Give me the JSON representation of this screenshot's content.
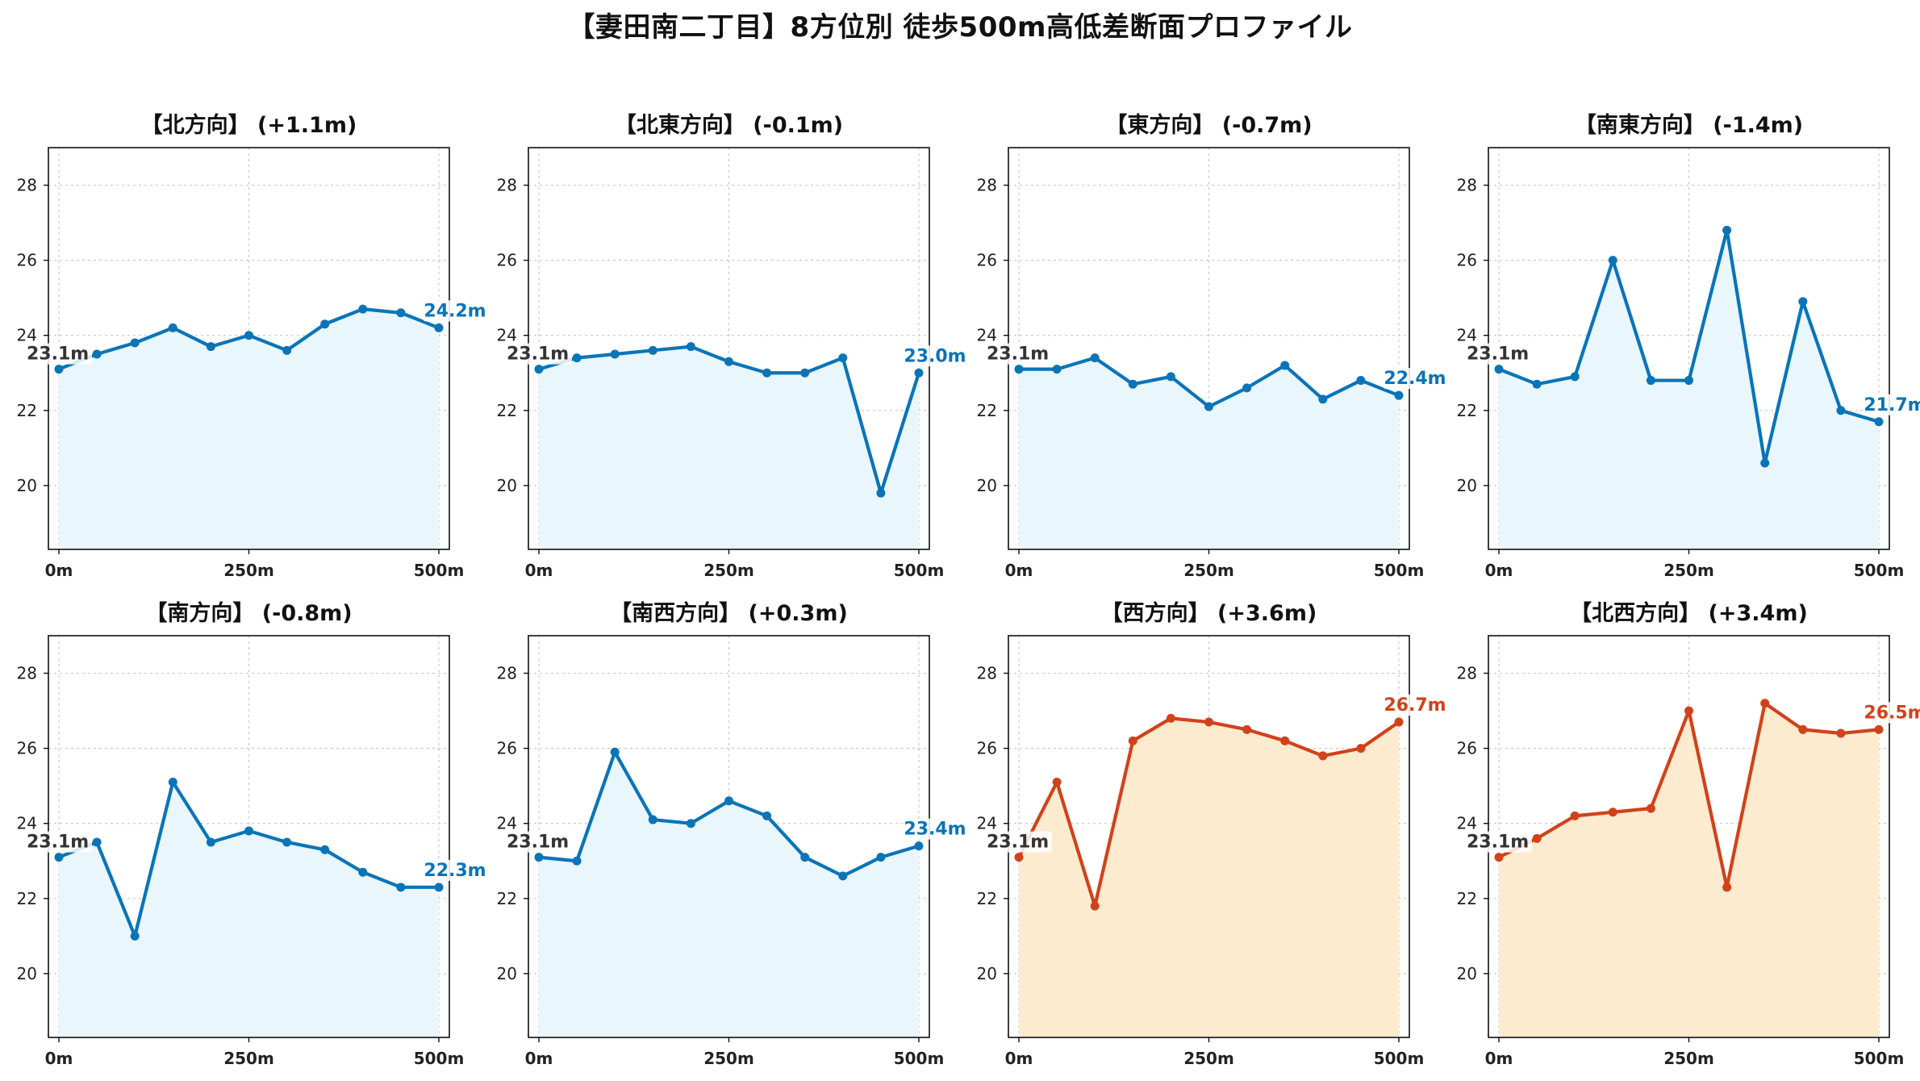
{
  "title": "【妻田南二丁目】8方位別 徒歩500m高低差断面プロファイル",
  "colors": {
    "up_line": "#d1421a",
    "up_fill": "#fdebd0",
    "down_line": "#0a74b8",
    "down_fill": "#e9f6fc",
    "start_label": "#333333"
  },
  "chart_data": [
    {
      "type": "area",
      "title": "【北方向】 (+1.1m)",
      "trend": "down",
      "x": [
        0,
        50,
        100,
        150,
        200,
        250,
        300,
        350,
        400,
        450,
        500
      ],
      "values": [
        23.1,
        23.5,
        23.8,
        24.2,
        23.7,
        24.0,
        23.6,
        24.3,
        24.7,
        24.6,
        24.2
      ],
      "start_label": "23.1m",
      "end_label": "24.2m",
      "x_ticks": [
        "0m",
        "250m",
        "500m"
      ],
      "y_ticks": [
        "20",
        "22",
        "24",
        "26",
        "28"
      ],
      "ylim": [
        18.3,
        29.0
      ],
      "grid": true
    },
    {
      "type": "area",
      "title": "【北東方向】 (-0.1m)",
      "trend": "down",
      "x": [
        0,
        50,
        100,
        150,
        200,
        250,
        300,
        350,
        400,
        450,
        500
      ],
      "values": [
        23.1,
        23.4,
        23.5,
        23.6,
        23.7,
        23.3,
        23.0,
        23.0,
        23.4,
        19.8,
        23.0
      ],
      "start_label": "23.1m",
      "end_label": "23.0m",
      "x_ticks": [
        "0m",
        "250m",
        "500m"
      ],
      "y_ticks": [
        "20",
        "22",
        "24",
        "26",
        "28"
      ],
      "ylim": [
        18.3,
        29.0
      ],
      "grid": true
    },
    {
      "type": "area",
      "title": "【東方向】 (-0.7m)",
      "trend": "down",
      "x": [
        0,
        50,
        100,
        150,
        200,
        250,
        300,
        350,
        400,
        450,
        500
      ],
      "values": [
        23.1,
        23.1,
        23.4,
        22.7,
        22.9,
        22.1,
        22.6,
        23.2,
        22.3,
        22.8,
        22.4
      ],
      "start_label": "23.1m",
      "end_label": "22.4m",
      "x_ticks": [
        "0m",
        "250m",
        "500m"
      ],
      "y_ticks": [
        "20",
        "22",
        "24",
        "26",
        "28"
      ],
      "ylim": [
        18.3,
        29.0
      ],
      "grid": true
    },
    {
      "type": "area",
      "title": "【南東方向】 (-1.4m)",
      "trend": "down",
      "x": [
        0,
        50,
        100,
        150,
        200,
        250,
        300,
        350,
        400,
        450,
        500
      ],
      "values": [
        23.1,
        22.7,
        22.9,
        26.0,
        22.8,
        22.8,
        26.8,
        20.6,
        24.9,
        22.0,
        21.7
      ],
      "start_label": "23.1m",
      "end_label": "21.7m",
      "x_ticks": [
        "0m",
        "250m",
        "500m"
      ],
      "y_ticks": [
        "20",
        "22",
        "24",
        "26",
        "28"
      ],
      "ylim": [
        18.3,
        29.0
      ],
      "grid": true
    },
    {
      "type": "area",
      "title": "【南方向】 (-0.8m)",
      "trend": "down",
      "x": [
        0,
        50,
        100,
        150,
        200,
        250,
        300,
        350,
        400,
        450,
        500
      ],
      "values": [
        23.1,
        23.5,
        21.0,
        25.1,
        23.5,
        23.8,
        23.5,
        23.3,
        22.7,
        22.3,
        22.3
      ],
      "start_label": "23.1m",
      "end_label": "22.3m",
      "x_ticks": [
        "0m",
        "250m",
        "500m"
      ],
      "y_ticks": [
        "20",
        "22",
        "24",
        "26",
        "28"
      ],
      "ylim": [
        18.3,
        29.0
      ],
      "grid": true
    },
    {
      "type": "area",
      "title": "【南西方向】 (+0.3m)",
      "trend": "down",
      "x": [
        0,
        50,
        100,
        150,
        200,
        250,
        300,
        350,
        400,
        450,
        500
      ],
      "values": [
        23.1,
        23.0,
        25.9,
        24.1,
        24.0,
        24.6,
        24.2,
        23.1,
        22.6,
        23.1,
        23.4
      ],
      "start_label": "23.1m",
      "end_label": "23.4m",
      "x_ticks": [
        "0m",
        "250m",
        "500m"
      ],
      "y_ticks": [
        "20",
        "22",
        "24",
        "26",
        "28"
      ],
      "ylim": [
        18.3,
        29.0
      ],
      "grid": true
    },
    {
      "type": "area",
      "title": "【西方向】 (+3.6m)",
      "trend": "up",
      "x": [
        0,
        50,
        100,
        150,
        200,
        250,
        300,
        350,
        400,
        450,
        500
      ],
      "values": [
        23.1,
        25.1,
        21.8,
        26.2,
        26.8,
        26.7,
        26.5,
        26.2,
        25.8,
        26.0,
        26.7
      ],
      "start_label": "23.1m",
      "end_label": "26.7m",
      "x_ticks": [
        "0m",
        "250m",
        "500m"
      ],
      "y_ticks": [
        "20",
        "22",
        "24",
        "26",
        "28"
      ],
      "ylim": [
        18.3,
        29.0
      ],
      "grid": true
    },
    {
      "type": "area",
      "title": "【北西方向】 (+3.4m)",
      "trend": "up",
      "x": [
        0,
        50,
        100,
        150,
        200,
        250,
        300,
        350,
        400,
        450,
        500
      ],
      "values": [
        23.1,
        23.6,
        24.2,
        24.3,
        24.4,
        27.0,
        22.3,
        27.2,
        26.5,
        26.4,
        26.5
      ],
      "start_label": "23.1m",
      "end_label": "26.5m",
      "x_ticks": [
        "0m",
        "250m",
        "500m"
      ],
      "y_ticks": [
        "20",
        "22",
        "24",
        "26",
        "28"
      ],
      "ylim": [
        18.3,
        29.0
      ],
      "grid": true
    }
  ]
}
